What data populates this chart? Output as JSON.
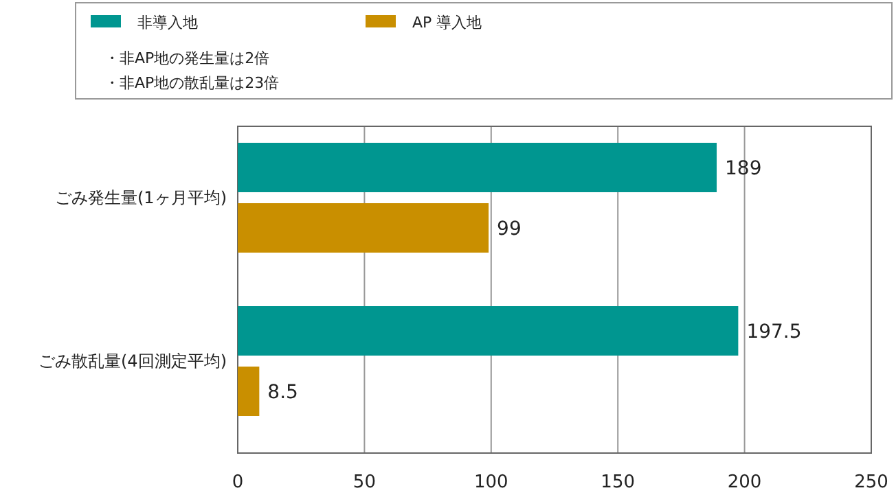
{
  "chart_data": {
    "type": "bar",
    "orientation": "horizontal",
    "categories": [
      "ごみ発生量(1ヶ月平均)",
      "ごみ散乱量(4回測定平均)"
    ],
    "series": [
      {
        "name": "非導入地",
        "color": "#009690",
        "values": [
          189,
          197.5
        ]
      },
      {
        "name": "AP 導入地",
        "color": "#c98f00",
        "values": [
          99,
          8.5
        ]
      }
    ],
    "xlim": [
      0,
      250
    ],
    "xticks": [
      0,
      50,
      100,
      150,
      200,
      250
    ],
    "grid": "x",
    "legend": "top",
    "data_labels": true,
    "annotations": [
      "・非AP地の発生量は2倍",
      "・非AP地の散乱量は23倍"
    ]
  }
}
